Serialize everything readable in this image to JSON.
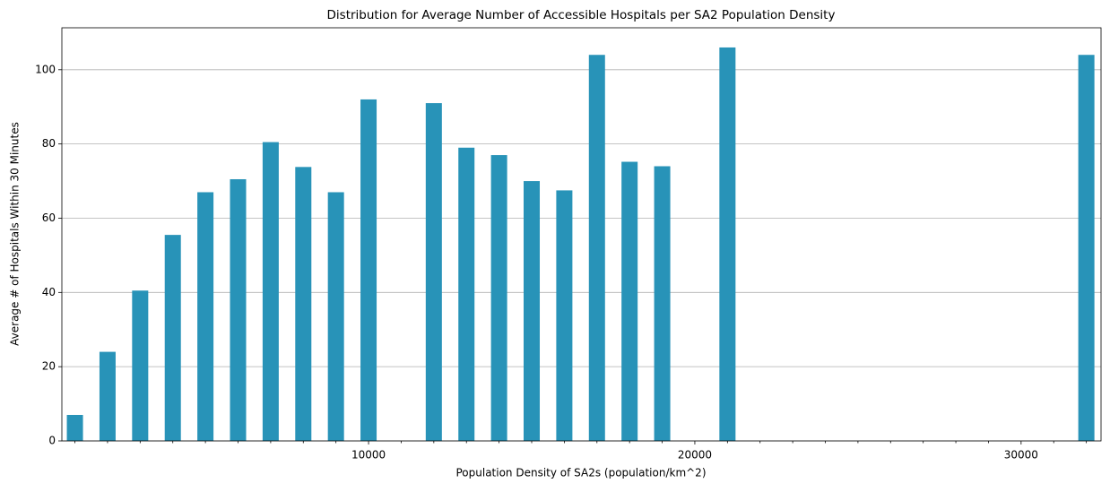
{
  "chart_data": {
    "type": "bar",
    "title": "Distribution for Average Number of Accessible Hospitals per SA2 Population Density",
    "x_label": "Population Density of SA2s (population/km^2)",
    "y_label": "Average # of Hospitals Within 30 Minutes",
    "x": [
      1000,
      2000,
      3000,
      4000,
      5000,
      6000,
      7000,
      8000,
      9000,
      10000,
      12000,
      13000,
      14000,
      15000,
      16000,
      17000,
      18000,
      19000,
      21000,
      32000
    ],
    "values": [
      7,
      24,
      40.5,
      55.5,
      67,
      70.5,
      80.5,
      73.8,
      67,
      92,
      91,
      79,
      77,
      70,
      67.5,
      104,
      75.2,
      74,
      106,
      104
    ],
    "color": "#2893b8",
    "xlim": [
      600,
      32450
    ],
    "xticks": [
      10000,
      20000,
      30000
    ],
    "xminorticks": [
      1000,
      2000,
      3000,
      4000,
      5000,
      6000,
      7000,
      8000,
      9000,
      11000,
      12000,
      13000,
      14000,
      15000,
      16000,
      17000,
      18000,
      19000,
      21000,
      22000,
      23000,
      24000,
      25000,
      26000,
      27000,
      28000,
      29000,
      31000,
      32000
    ],
    "ylim": [
      0,
      111.3
    ],
    "yticks": [
      0,
      20,
      40,
      60,
      80,
      100
    ],
    "grid": "y"
  }
}
